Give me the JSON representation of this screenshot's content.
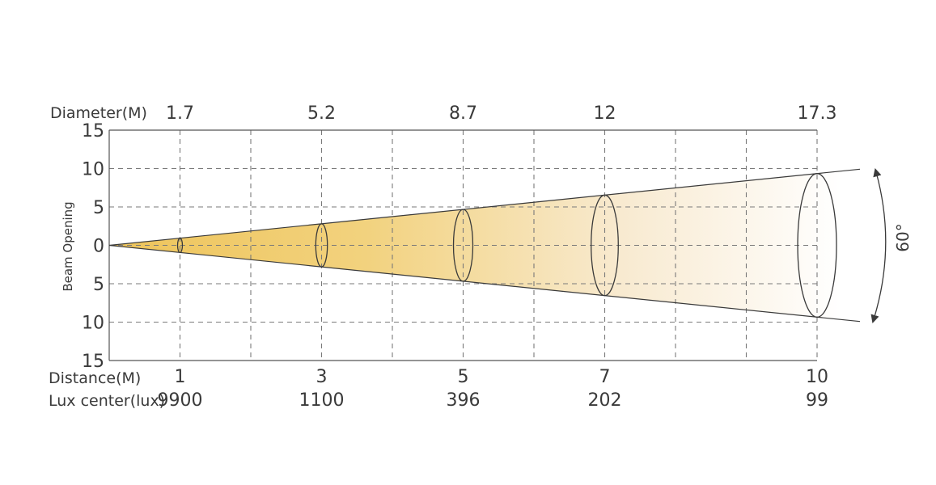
{
  "chart_data": {
    "type": "beam-angle",
    "beam_angle_label": "60°",
    "row_labels": {
      "diameter": "Diameter(M)",
      "distance": "Distance(M)",
      "lux": "Lux center(lux)"
    },
    "ylabel": "Beam Opening",
    "y_ticks": [
      "15",
      "10",
      "5",
      "0",
      "5",
      "10",
      "15"
    ],
    "ylim": [
      -15,
      15
    ],
    "xlim": [
      0,
      10
    ],
    "grid": true,
    "distance": [
      1,
      3,
      5,
      7,
      10
    ],
    "diameter": [
      1.7,
      5.2,
      8.7,
      12,
      17.3
    ],
    "lux_center": [
      9900,
      1100,
      396,
      202,
      99
    ],
    "colors": {
      "beam_start": "#eec45a",
      "beam_end": "#ffffff",
      "grid": "#7a7a7a",
      "line": "#3a3a3a"
    }
  }
}
